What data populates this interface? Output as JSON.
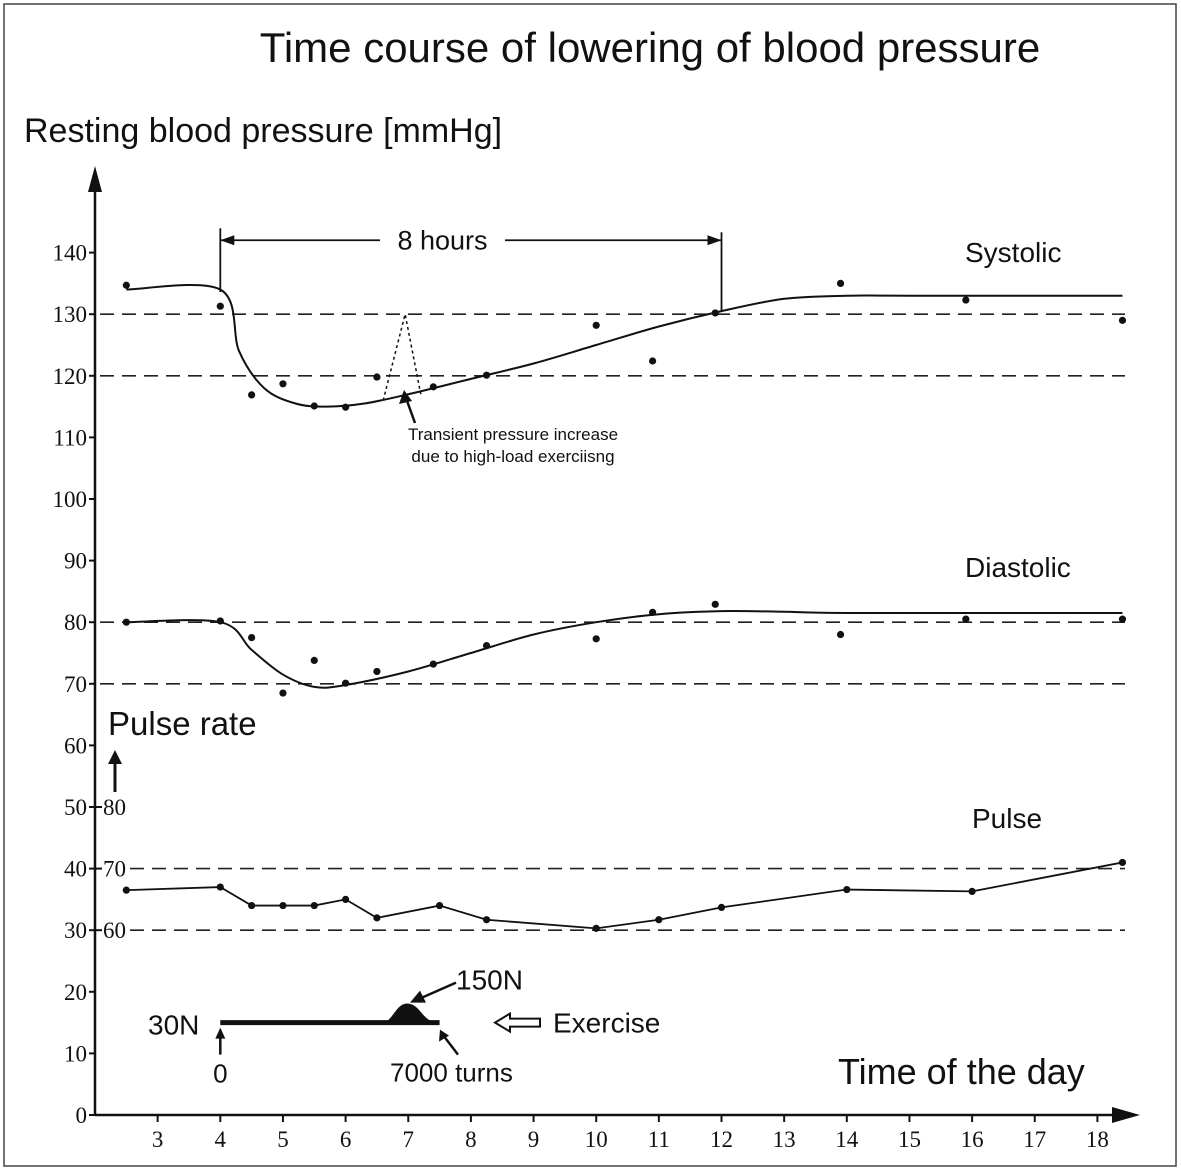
{
  "chart_data": {
    "type": "line",
    "title": "Time course of lowering of blood pressure",
    "y_label": "Resting blood pressure [mmHg]",
    "x_label": "Time of the day",
    "y2_label": "Pulse rate",
    "xlim": [
      2,
      18.6
    ],
    "xticks": [
      3,
      4,
      5,
      6,
      7,
      8,
      9,
      10,
      11,
      12,
      13,
      14,
      15,
      16,
      17,
      18
    ],
    "ylim": [
      0,
      150
    ],
    "yticks": [
      0,
      10,
      20,
      30,
      40,
      50,
      60,
      70,
      80,
      90,
      100,
      110,
      120,
      130,
      140
    ],
    "y2lim": [
      30,
      180
    ],
    "y2ticks": [
      60,
      70,
      80
    ],
    "reference_lines": [
      130,
      120,
      80,
      70
    ],
    "y2_reference_lines": [
      70,
      60
    ],
    "series": [
      {
        "name": "Systolic",
        "color": "#111111",
        "x": [
          2.5,
          4,
          4.5,
          5,
          5.5,
          6,
          6.5,
          7.4,
          8.25,
          10,
          10.9,
          11.9,
          13.9,
          15.9,
          18.4
        ],
        "values": [
          134.7,
          131.3,
          116.9,
          118.7,
          115.1,
          114.9,
          119.8,
          118.2,
          120.1,
          128.2,
          122.4,
          130.2,
          135,
          132.3,
          129
        ],
        "fit": {
          "x": [
            2.5,
            4,
            4.3,
            4.7,
            5.2,
            5.7,
            6.3,
            7,
            8,
            9,
            10,
            11,
            12,
            13,
            14,
            15,
            18.4
          ],
          "values": [
            134,
            134,
            124,
            118,
            115.5,
            115,
            115.5,
            117,
            119.5,
            122,
            125,
            128,
            130.5,
            132.5,
            133,
            133,
            133
          ]
        }
      },
      {
        "name": "Diastolic",
        "color": "#111111",
        "x": [
          2.5,
          4,
          4.5,
          5,
          5.5,
          6,
          6.5,
          7.4,
          8.25,
          10,
          10.9,
          11.9,
          13.9,
          15.9,
          18.4
        ],
        "values": [
          80,
          80.2,
          77.5,
          68.5,
          73.8,
          70.1,
          72,
          73.2,
          76.2,
          77.3,
          81.6,
          82.9,
          78,
          80.5,
          80.5
        ],
        "fit": {
          "x": [
            2.5,
            4,
            4.5,
            5,
            5.5,
            6,
            7,
            8,
            9,
            10,
            11,
            12,
            13,
            14,
            18.4
          ],
          "values": [
            80,
            80,
            75.5,
            71.5,
            69.5,
            69.8,
            72,
            75,
            78,
            80,
            81.3,
            81.8,
            81.7,
            81.5,
            81.5
          ]
        }
      },
      {
        "name": "Pulse",
        "color": "#111111",
        "axis": "y2",
        "x": [
          2.5,
          4,
          4.5,
          5,
          5.5,
          6,
          6.5,
          7.5,
          8.25,
          10,
          11,
          12,
          14,
          16,
          18.4
        ],
        "values": [
          66.5,
          67,
          64,
          64,
          64,
          65,
          62,
          64,
          61.7,
          60.3,
          61.7,
          63.7,
          66.6,
          66.3,
          71
        ]
      }
    ],
    "bracket": {
      "text": "8 hours",
      "x": [
        4,
        12
      ],
      "y": 142
    },
    "transient": {
      "text": [
        "Transient pressure increase",
        "due to high-load exerciisng"
      ],
      "x": [
        6.6,
        6.95,
        7.2
      ],
      "values": [
        116,
        130,
        117
      ]
    },
    "exercise": {
      "label": "Exercise",
      "start_label": "30N",
      "zero_label": "0",
      "peak_label": "150N",
      "end_label": "7000 turns",
      "x": [
        4,
        7.5
      ],
      "peak_x": 7,
      "y": 15
    }
  }
}
